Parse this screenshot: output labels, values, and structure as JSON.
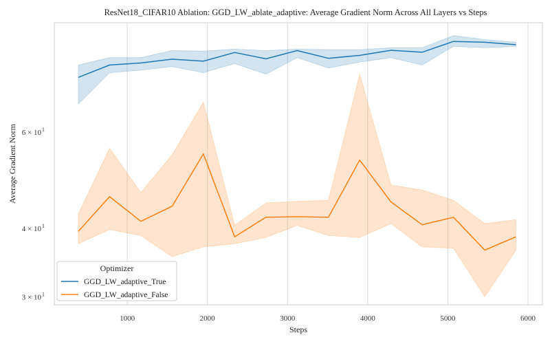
{
  "chart_data": {
    "type": "line",
    "title": "ResNet18_CIFAR10 Ablation: GGD_LW_ablate_adaptive: Average Gradient Norm Across All Layers vs Steps",
    "xlabel": "Steps",
    "ylabel": "Average Gradient Norm",
    "yscale": "log",
    "xlim": [
      90,
      6180
    ],
    "ylim": [
      29,
      95
    ],
    "x_ticks": [
      1000,
      2000,
      3000,
      4000,
      5000,
      6000
    ],
    "x_tick_labels": [
      "1000",
      "2000",
      "3000",
      "4000",
      "5000",
      "6000"
    ],
    "y_ticks": [
      {
        "value": 60,
        "base": "6 × 10",
        "exp": "1"
      },
      {
        "value": 40,
        "base": "4 × 10",
        "exp": "1"
      },
      {
        "value": 30,
        "base": "3 × 10",
        "exp": "1"
      }
    ],
    "grid": "vertical",
    "legend": {
      "title": "Optimizer",
      "position": "bottom-left"
    },
    "series": [
      {
        "name": "GGD_LW_adaptive_True",
        "color": "#1f77b4",
        "x": [
          390,
          780,
          1170,
          1560,
          1950,
          2340,
          2730,
          3120,
          3510,
          3900,
          4290,
          4680,
          5070,
          5460,
          5850
        ],
        "y": [
          75.5,
          79.5,
          80.2,
          81.5,
          80.8,
          83.8,
          81.6,
          84.5,
          81.8,
          82.8,
          84.6,
          83.9,
          87.8,
          87.5,
          86.6
        ],
        "lower": [
          67.5,
          77.0,
          77.8,
          79.0,
          77.0,
          80.0,
          76.5,
          82.0,
          78.5,
          80.5,
          82.0,
          79.5,
          86.0,
          85.5,
          86.0
        ],
        "upper": [
          79.5,
          82.0,
          82.0,
          84.5,
          84.3,
          85.0,
          84.5,
          85.0,
          84.8,
          84.8,
          85.5,
          85.5,
          90.0,
          88.5,
          87.5
        ]
      },
      {
        "name": "GGD_LW_adaptive_False",
        "color": "#ff7f0e",
        "x": [
          390,
          780,
          1170,
          1560,
          1950,
          2340,
          2730,
          3120,
          3510,
          3900,
          4290,
          4680,
          5070,
          5460,
          5850
        ],
        "y": [
          39.5,
          45.7,
          41.2,
          43.9,
          54.7,
          38.6,
          41.9,
          42.0,
          41.9,
          53.3,
          44.7,
          40.6,
          41.9,
          36.5,
          38.6
        ],
        "lower": [
          37.5,
          39.8,
          38.8,
          35.5,
          37.0,
          37.5,
          38.5,
          40.5,
          38.8,
          38.5,
          40.8,
          37.0,
          36.8,
          30.0,
          36.5
        ],
        "upper": [
          42.5,
          56.0,
          46.5,
          54.5,
          68.0,
          40.5,
          44.5,
          44.8,
          45.0,
          76.5,
          48.0,
          47.0,
          45.0,
          40.8,
          41.5
        ]
      }
    ]
  }
}
